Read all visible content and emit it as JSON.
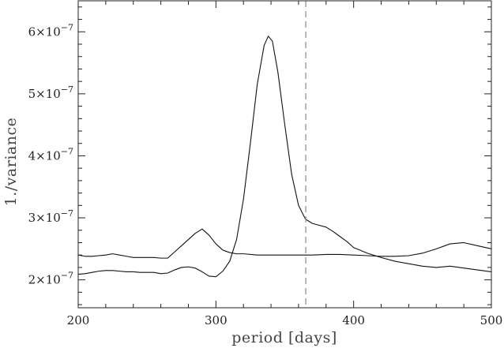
{
  "chart_data": {
    "type": "line",
    "title": "",
    "xlabel": "period [days]",
    "ylabel": "1./variance",
    "xlim": [
      200,
      500
    ],
    "ylim": [
      1.55e-07,
      6.5e-07
    ],
    "x_ticks": [
      {
        "value": 200,
        "label": "200"
      },
      {
        "value": 300,
        "label": "300"
      },
      {
        "value": 400,
        "label": "400"
      },
      {
        "value": 500,
        "label": "500"
      }
    ],
    "y_ticks": [
      {
        "value": 2e-07,
        "mantissa": "2",
        "base": "×10",
        "exp": "−7"
      },
      {
        "value": 3e-07,
        "mantissa": "3",
        "base": "×10",
        "exp": "−7"
      },
      {
        "value": 4e-07,
        "mantissa": "4",
        "base": "×10",
        "exp": "−7"
      },
      {
        "value": 5e-07,
        "mantissa": "5",
        "base": "×10",
        "exp": "−7"
      },
      {
        "value": 6e-07,
        "mantissa": "6",
        "base": "×10",
        "exp": "−7"
      }
    ],
    "vline": {
      "x": 365.25,
      "style": "dashed",
      "color": "#9a9a9a"
    },
    "line_color": "#111111",
    "series": [
      {
        "x": [
          200,
          205,
          210,
          215,
          220,
          225,
          230,
          235,
          240,
          245,
          250,
          255,
          260,
          265,
          270,
          275,
          280,
          285,
          290,
          295,
          300,
          305,
          310,
          315,
          320,
          325,
          330,
          335,
          338,
          341,
          345,
          350,
          355,
          360,
          365,
          370,
          375,
          380,
          385,
          390,
          395,
          400,
          410,
          420,
          430,
          440,
          450,
          460,
          470,
          480,
          490,
          500
        ],
        "y": [
          2.09e-07,
          2.1e-07,
          2.12e-07,
          2.14e-07,
          2.15e-07,
          2.15e-07,
          2.14e-07,
          2.13e-07,
          2.13e-07,
          2.12e-07,
          2.12e-07,
          2.12e-07,
          2.1e-07,
          2.11e-07,
          2.16e-07,
          2.2e-07,
          2.21e-07,
          2.19e-07,
          2.13e-07,
          2.06e-07,
          2.05e-07,
          2.14e-07,
          2.3e-07,
          2.65e-07,
          3.3e-07,
          4.2e-07,
          5.15e-07,
          5.78e-07,
          5.93e-07,
          5.85e-07,
          5.35e-07,
          4.5e-07,
          3.7e-07,
          3.2e-07,
          2.98e-07,
          2.91e-07,
          2.88e-07,
          2.85e-07,
          2.78e-07,
          2.7e-07,
          2.62e-07,
          2.52e-07,
          2.43e-07,
          2.36e-07,
          2.3e-07,
          2.26e-07,
          2.22e-07,
          2.2e-07,
          2.22e-07,
          2.19e-07,
          2.16e-07,
          2.13e-07
        ]
      },
      {
        "x": [
          200,
          205,
          210,
          215,
          220,
          225,
          230,
          235,
          240,
          245,
          250,
          255,
          260,
          265,
          270,
          275,
          280,
          285,
          290,
          295,
          300,
          305,
          310,
          315,
          320,
          330,
          340,
          350,
          360,
          370,
          380,
          390,
          400,
          410,
          420,
          430,
          440,
          450,
          460,
          470,
          480,
          490,
          500
        ],
        "y": [
          2.4e-07,
          2.38e-07,
          2.38e-07,
          2.39e-07,
          2.4e-07,
          2.42e-07,
          2.4e-07,
          2.38e-07,
          2.36e-07,
          2.36e-07,
          2.36e-07,
          2.36e-07,
          2.35e-07,
          2.35e-07,
          2.45e-07,
          2.55e-07,
          2.65e-07,
          2.75e-07,
          2.82e-07,
          2.72e-07,
          2.58e-07,
          2.48e-07,
          2.44e-07,
          2.42e-07,
          2.42e-07,
          2.4e-07,
          2.4e-07,
          2.4e-07,
          2.4e-07,
          2.4e-07,
          2.41e-07,
          2.41e-07,
          2.4e-07,
          2.39e-07,
          2.38e-07,
          2.38e-07,
          2.39e-07,
          2.43e-07,
          2.5e-07,
          2.58e-07,
          2.6e-07,
          2.55e-07,
          2.5e-07
        ]
      }
    ]
  }
}
